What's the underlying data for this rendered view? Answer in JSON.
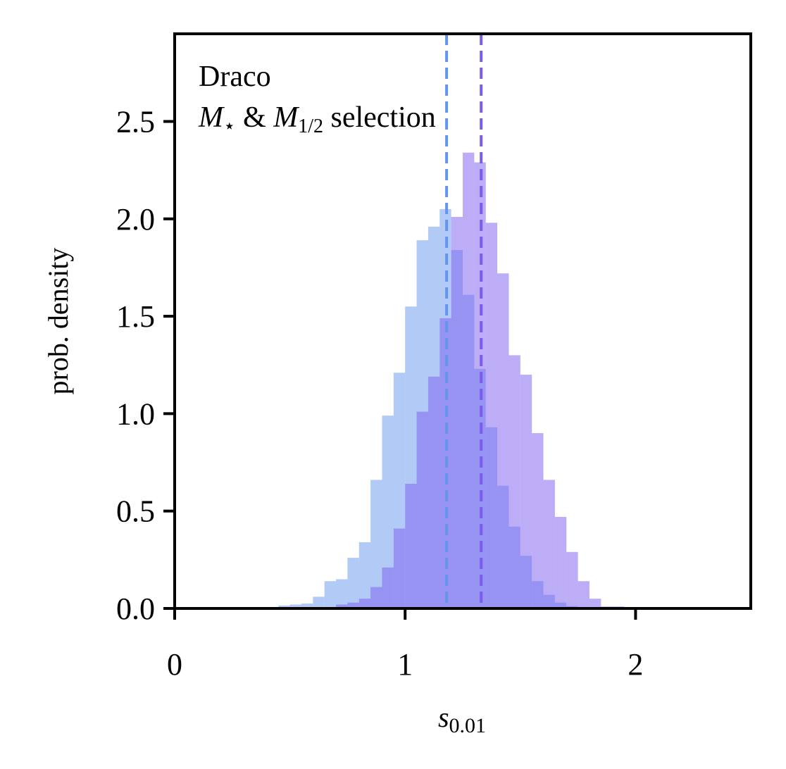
{
  "chart_data": {
    "type": "bar",
    "subtype": "overlaid-histogram",
    "title": "",
    "xlabel": "s_0.01",
    "xlabel_parts": {
      "base": "s",
      "subscript": "0.01"
    },
    "ylabel": "prob. density",
    "xlim": [
      0,
      2.5
    ],
    "ylim": [
      0,
      2.95
    ],
    "xticks": [
      0,
      1,
      2
    ],
    "xtick_labels": [
      "0",
      "1",
      "2"
    ],
    "yticks": [
      0,
      0.5,
      1.0,
      1.5,
      2.0,
      2.5
    ],
    "ytick_labels": [
      "0.0",
      "0.5",
      "1.0",
      "1.5",
      "2.0",
      "2.5"
    ],
    "grid": false,
    "legend": "none",
    "annotation": {
      "line1": "Draco",
      "line2_parts": [
        {
          "text": "M",
          "style": "italic"
        },
        {
          "text": "⋆",
          "style": "sub"
        },
        {
          "text": " & ",
          "style": "normal"
        },
        {
          "text": "M",
          "style": "italic"
        },
        {
          "text": "1/2",
          "style": "sub"
        },
        {
          "text": " selection",
          "style": "normal"
        }
      ]
    },
    "series": [
      {
        "color": "#6495ed",
        "opacity": 0.5,
        "bin_edges": [
          0.45,
          0.5,
          0.55,
          0.6,
          0.65,
          0.7,
          0.75,
          0.8,
          0.85,
          0.9,
          0.95,
          1.0,
          1.05,
          1.1,
          1.15,
          1.2,
          1.25,
          1.3,
          1.35,
          1.4,
          1.45,
          1.5,
          1.55,
          1.6,
          1.65,
          1.7,
          1.75,
          1.8
        ],
        "values": [
          0.015,
          0.02,
          0.025,
          0.06,
          0.14,
          0.15,
          0.26,
          0.34,
          0.66,
          0.99,
          1.21,
          1.55,
          1.89,
          1.96,
          2.05,
          1.84,
          1.61,
          1.23,
          0.93,
          0.63,
          0.42,
          0.27,
          0.14,
          0.07,
          0.03,
          0.012,
          0.005
        ]
      },
      {
        "color": "#7b5cf0",
        "opacity": 0.5,
        "bin_edges": [
          0.7,
          0.75,
          0.8,
          0.85,
          0.9,
          0.95,
          1.0,
          1.05,
          1.1,
          1.15,
          1.2,
          1.25,
          1.3,
          1.35,
          1.4,
          1.45,
          1.5,
          1.55,
          1.6,
          1.65,
          1.7,
          1.75,
          1.8,
          1.85,
          1.9,
          1.95
        ],
        "values": [
          0.02,
          0.03,
          0.05,
          0.11,
          0.21,
          0.41,
          0.64,
          1.01,
          1.19,
          1.49,
          2.01,
          2.34,
          2.29,
          1.98,
          1.72,
          1.3,
          1.2,
          0.9,
          0.66,
          0.47,
          0.29,
          0.14,
          0.05,
          0.01,
          0.01
        ]
      }
    ],
    "vlines": [
      {
        "x": 1.18,
        "color": "#6495ed",
        "style": "dashed"
      },
      {
        "x": 1.33,
        "color": "#7b5cf0",
        "style": "dashed"
      }
    ]
  }
}
